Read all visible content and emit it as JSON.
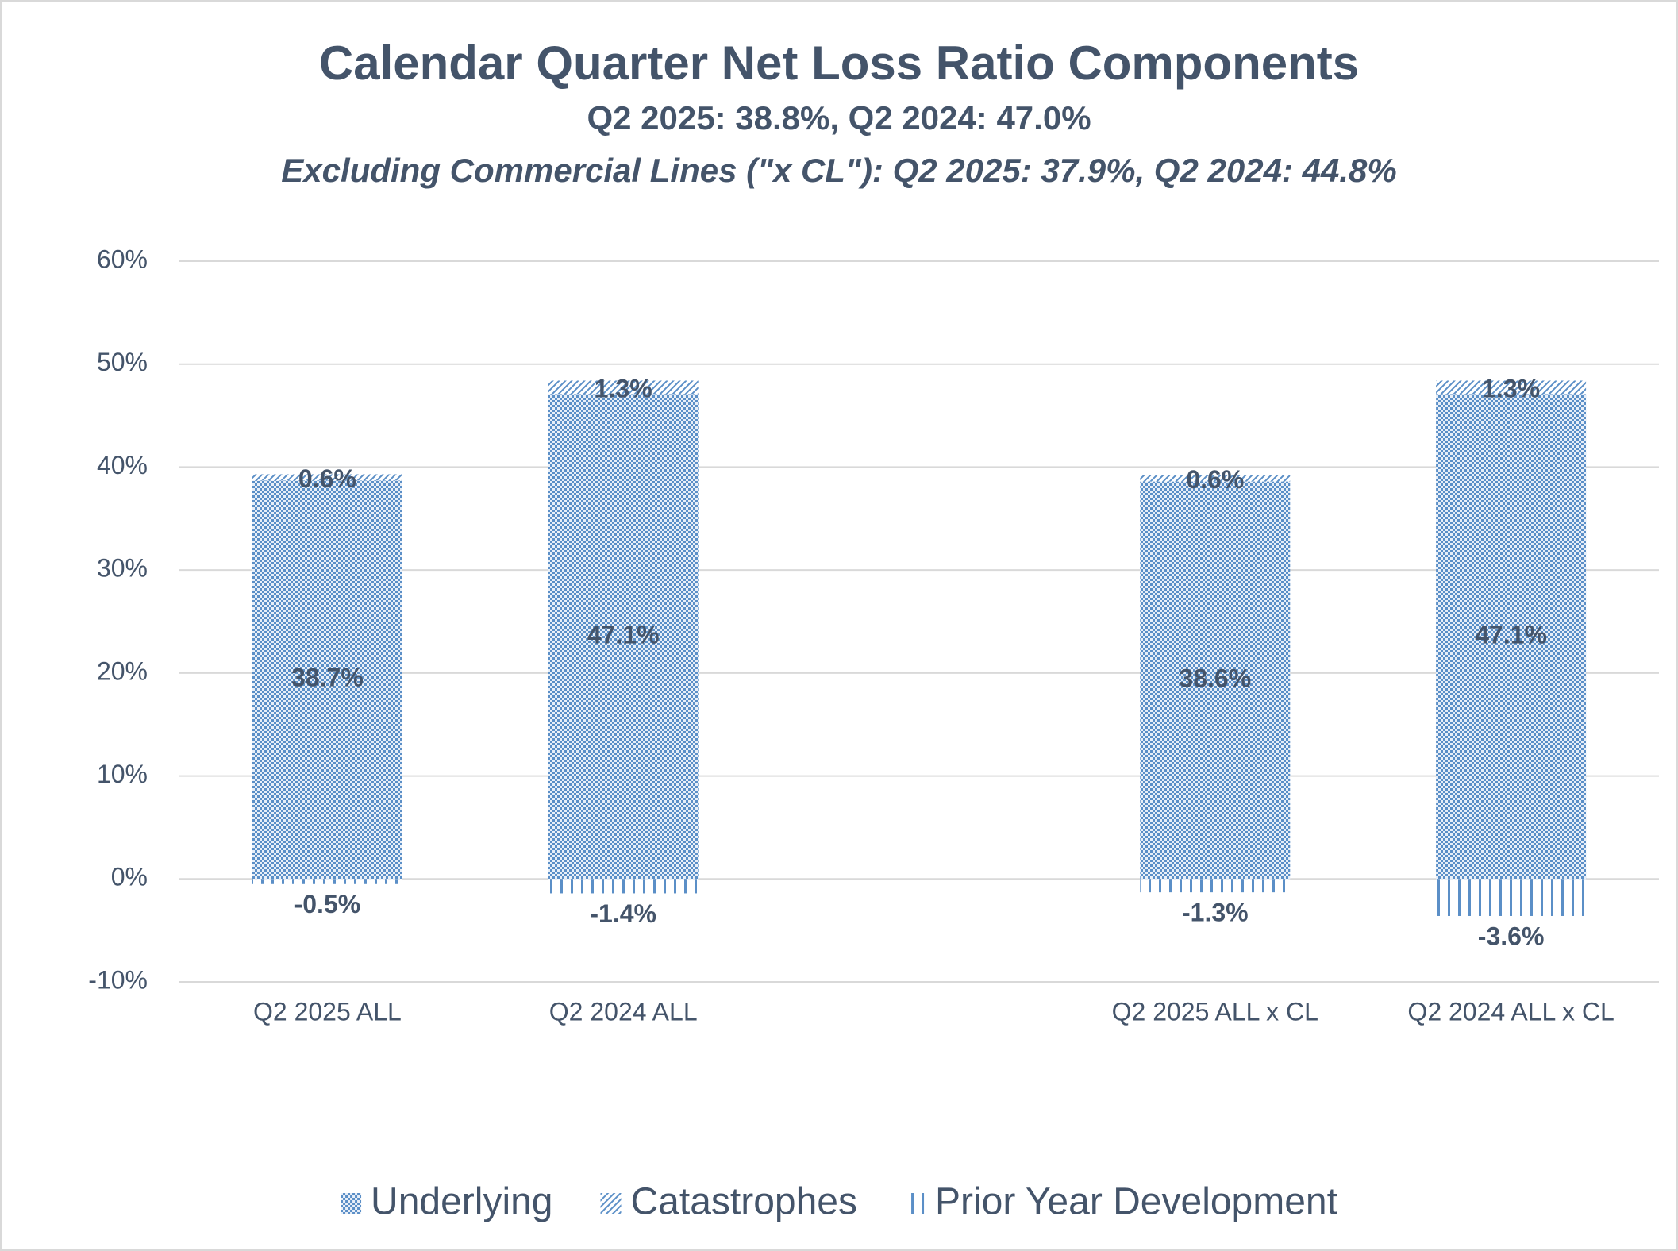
{
  "chart_data": {
    "type": "stacked-bar",
    "title": "Calendar Quarter Net Loss Ratio Components",
    "subtitle": "Q2 2025: 38.8%, Q2 2024: 47.0%",
    "subtitle2": "Excluding Commercial Lines (\"x CL\"): Q2 2025: 37.9%, Q2 2024: 44.8%",
    "categories": [
      "Q2 2025 ALL",
      "Q2 2024 ALL",
      null,
      "Q2 2025 ALL x CL",
      "Q2 2024 ALL x CL"
    ],
    "series": [
      {
        "name": "Underlying",
        "color": "#5b8fc7",
        "pattern": "checker",
        "values": [
          38.7,
          47.1,
          null,
          38.6,
          47.1
        ],
        "value_labels": [
          "38.7%",
          "47.1%",
          null,
          "38.6%",
          "47.1%"
        ]
      },
      {
        "name": "Catastrophes",
        "color": "#5b8fc7",
        "pattern": "diagonal",
        "values": [
          0.6,
          1.3,
          null,
          0.6,
          1.3
        ],
        "value_labels": [
          "0.6%",
          "1.3%",
          null,
          "0.6%",
          "1.3%"
        ]
      },
      {
        "name": "Prior Year Development",
        "color": "#5b8fc7",
        "pattern": "vertical",
        "values": [
          -0.5,
          -1.4,
          null,
          -1.3,
          -3.6
        ],
        "value_labels": [
          "-0.5%",
          "-1.4%",
          null,
          "-1.3%",
          "-3.6%"
        ]
      }
    ],
    "ylim": [
      -10,
      60
    ],
    "yticks": [
      {
        "value": -10,
        "label": "-10%"
      },
      {
        "value": 0,
        "label": "0%"
      },
      {
        "value": 10,
        "label": "10%"
      },
      {
        "value": 20,
        "label": "20%"
      },
      {
        "value": 30,
        "label": "30%"
      },
      {
        "value": 40,
        "label": "40%"
      },
      {
        "value": 50,
        "label": "50%"
      },
      {
        "value": 60,
        "label": "60%"
      }
    ],
    "grid": true
  }
}
